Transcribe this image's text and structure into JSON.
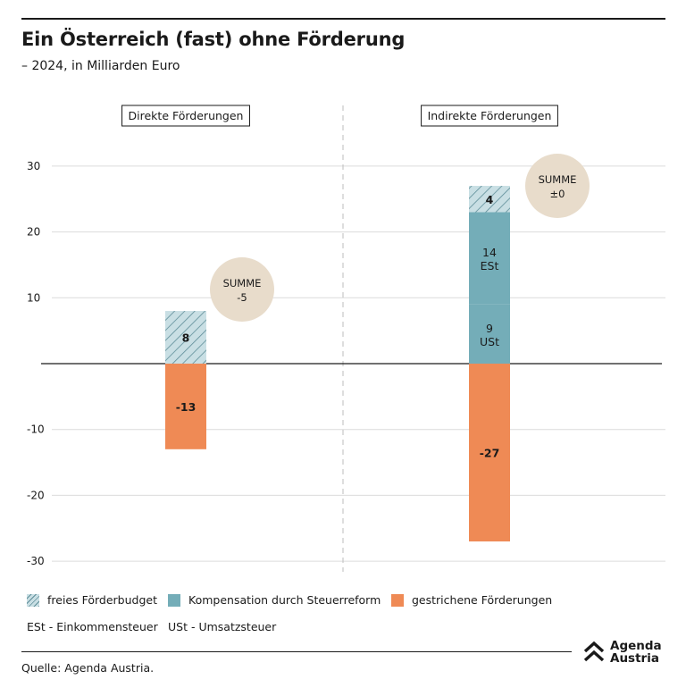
{
  "title": "Ein Österreich (fast) ohne Förderung",
  "subtitle": "– 2024, in Milliarden Euro",
  "colors": {
    "hatch_fill": "#c9dfe4",
    "hatch_line": "#5f8e99",
    "blue": "#74adb8",
    "orange": "#ef8a55",
    "circle": "#e8dccb"
  },
  "chart_data": {
    "type": "bar",
    "stacked": true,
    "ylim": [
      -30,
      30
    ],
    "yticks": [
      -30,
      -20,
      -10,
      10,
      20,
      30
    ],
    "groups": [
      {
        "label": "Direkte Förderungen",
        "segments": [
          {
            "series": "freies Förderbudget",
            "value": 8,
            "label": "8",
            "sublabel": ""
          },
          {
            "series": "gestrichene Förderungen",
            "value": -13,
            "label": "-13",
            "sublabel": ""
          }
        ],
        "sum_label": "SUMME",
        "sum_value": "-5"
      },
      {
        "label": "Indirekte Förderungen",
        "segments": [
          {
            "series": "Kompensation durch Steuerreform",
            "value": 9,
            "label": "9",
            "sublabel": "USt"
          },
          {
            "series": "Kompensation durch Steuerreform",
            "value": 14,
            "label": "14",
            "sublabel": "ESt"
          },
          {
            "series": "freies Förderbudget",
            "value": 4,
            "label": "4",
            "sublabel": ""
          },
          {
            "series": "gestrichene Förderungen",
            "value": -27,
            "label": "-27",
            "sublabel": ""
          }
        ],
        "sum_label": "SUMME",
        "sum_value": "±0"
      }
    ]
  },
  "legend": [
    {
      "label": "freies Förderbudget",
      "swatch": "hatch"
    },
    {
      "label": "Kompensation durch Steuerreform",
      "swatch": "blue"
    },
    {
      "label": "gestrichene Förderungen",
      "swatch": "orange"
    }
  ],
  "abbreviations": [
    "ESt - Einkommensteuer",
    "USt - Umsatzsteuer"
  ],
  "source": "Quelle: Agenda Austria.",
  "logo": {
    "line1": "Agenda",
    "line2": "Austria",
    "icon": "chevron-up-icon"
  }
}
